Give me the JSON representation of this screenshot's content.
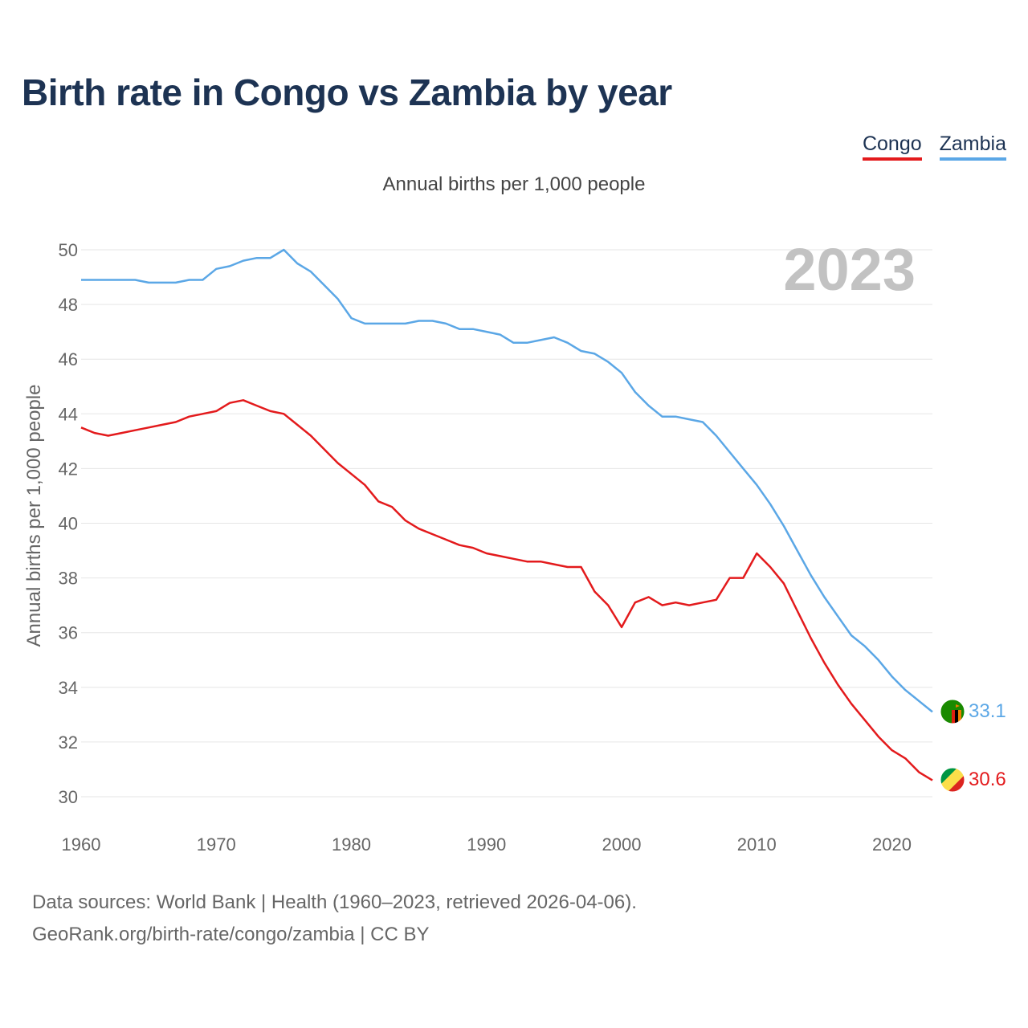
{
  "chart_data": {
    "type": "line",
    "title": "Birth rate in Congo vs Zambia by year",
    "subtitle": "Annual births per 1,000 people",
    "ylabel": "Annual births per 1,000 people",
    "xlabel": "",
    "year_label": "2023",
    "xlim": [
      1960,
      2023
    ],
    "ylim": [
      30,
      50
    ],
    "x_ticks": [
      "1960",
      "1970",
      "1980",
      "1990",
      "2000",
      "2010",
      "2020"
    ],
    "y_ticks": [
      "30",
      "32",
      "34",
      "36",
      "38",
      "40",
      "42",
      "44",
      "46",
      "48",
      "50"
    ],
    "x": [
      1960,
      1961,
      1962,
      1963,
      1964,
      1965,
      1966,
      1967,
      1968,
      1969,
      1970,
      1971,
      1972,
      1973,
      1974,
      1975,
      1976,
      1977,
      1978,
      1979,
      1980,
      1981,
      1982,
      1983,
      1984,
      1985,
      1986,
      1987,
      1988,
      1989,
      1990,
      1991,
      1992,
      1993,
      1994,
      1995,
      1996,
      1997,
      1998,
      1999,
      2000,
      2001,
      2002,
      2003,
      2004,
      2005,
      2006,
      2007,
      2008,
      2009,
      2010,
      2011,
      2012,
      2013,
      2014,
      2015,
      2016,
      2017,
      2018,
      2019,
      2020,
      2021,
      2022,
      2023
    ],
    "series": [
      {
        "name": "Congo",
        "color": "#e31a1c",
        "end_label": "30.6",
        "values": [
          43.5,
          43.3,
          43.2,
          43.3,
          43.4,
          43.5,
          43.6,
          43.7,
          43.9,
          44.0,
          44.1,
          44.4,
          44.5,
          44.3,
          44.1,
          44.0,
          43.6,
          43.2,
          42.7,
          42.2,
          41.8,
          41.4,
          40.8,
          40.6,
          40.1,
          39.8,
          39.6,
          39.4,
          39.2,
          39.1,
          38.9,
          38.8,
          38.7,
          38.6,
          38.6,
          38.5,
          38.4,
          38.4,
          37.5,
          37.0,
          36.2,
          37.1,
          37.3,
          37.0,
          37.1,
          37.0,
          37.1,
          37.2,
          38.0,
          38.0,
          38.9,
          38.4,
          37.8,
          36.8,
          35.8,
          34.9,
          34.1,
          33.4,
          32.8,
          32.2,
          31.7,
          31.4,
          30.9,
          30.6
        ]
      },
      {
        "name": "Zambia",
        "color": "#5ba7e6",
        "end_label": "33.1",
        "values": [
          48.9,
          48.9,
          48.9,
          48.9,
          48.9,
          48.8,
          48.8,
          48.8,
          48.9,
          48.9,
          49.3,
          49.4,
          49.6,
          49.7,
          49.7,
          50.0,
          49.5,
          49.2,
          48.7,
          48.2,
          47.5,
          47.3,
          47.3,
          47.3,
          47.3,
          47.4,
          47.4,
          47.3,
          47.1,
          47.1,
          47.0,
          46.9,
          46.6,
          46.6,
          46.7,
          46.8,
          46.6,
          46.3,
          46.2,
          45.9,
          45.5,
          44.8,
          44.3,
          43.9,
          43.9,
          43.8,
          43.7,
          43.2,
          42.6,
          42.0,
          41.4,
          40.7,
          39.9,
          39.0,
          38.1,
          37.3,
          36.6,
          35.9,
          35.5,
          35.0,
          34.4,
          33.9,
          33.5,
          33.1
        ]
      }
    ]
  },
  "footer": {
    "line1": "Data sources: World Bank | Health (1960–2023, retrieved 2026-04-06).",
    "line2": "GeoRank.org/birth-rate/congo/zambia | CC BY"
  },
  "flags": {
    "congo": "congo-flag-icon",
    "zambia": "zambia-flag-icon"
  }
}
